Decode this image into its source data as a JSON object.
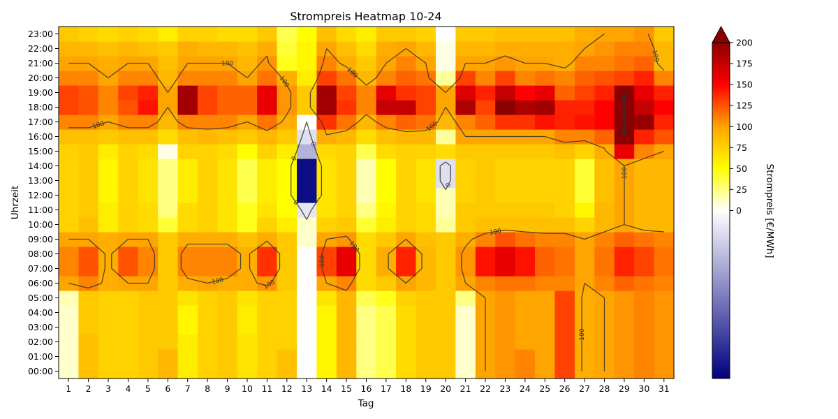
{
  "chart_data": {
    "type": "heatmap",
    "title": "Strompreis Heatmap 10-24",
    "xlabel": "Tag",
    "ylabel": "Uhrzeit",
    "colorbar_label": "Strompreis [€/MWh]",
    "x_ticks": [
      "1",
      "2",
      "3",
      "4",
      "5",
      "6",
      "7",
      "8",
      "9",
      "10",
      "11",
      "12",
      "13",
      "14",
      "15",
      "16",
      "17",
      "18",
      "19",
      "20",
      "21",
      "22",
      "23",
      "24",
      "25",
      "26",
      "27",
      "28",
      "29",
      "30",
      "31"
    ],
    "y_ticks": [
      "00:00",
      "01:00",
      "02:00",
      "03:00",
      "04:00",
      "05:00",
      "06:00",
      "07:00",
      "08:00",
      "09:00",
      "10:00",
      "11:00",
      "12:00",
      "13:00",
      "14:00",
      "15:00",
      "16:00",
      "17:00",
      "18:00",
      "19:00",
      "20:00",
      "21:00",
      "22:00",
      "23:00"
    ],
    "colorbar_ticks": [
      0,
      25,
      50,
      75,
      100,
      125,
      150,
      175,
      200
    ],
    "vmin": -200,
    "vmax": 200,
    "colorbar_extend": "max",
    "colors": [
      "#00007f",
      "#ffffff",
      "#ffff00",
      "#ffa500",
      "#ff0000",
      "#8b0000"
    ],
    "contour_levels": [
      0,
      100,
      200
    ],
    "contour_label_texts": [
      "0",
      "0",
      "0",
      "0",
      "100",
      "100",
      "100",
      "100",
      "100",
      "100",
      "100",
      "100",
      "100",
      "100",
      "100",
      "100",
      "100",
      "200",
      "200",
      "200"
    ],
    "grid": false,
    "values_by_hour": [
      [
        10,
        85,
        75,
        75,
        80,
        90,
        60,
        75,
        80,
        65,
        75,
        85,
        0,
        55,
        90,
        25,
        35,
        70,
        80,
        80,
        10,
        100,
        105,
        110,
        100,
        130,
        95,
        100,
        105,
        110,
        105
      ],
      [
        10,
        85,
        75,
        75,
        80,
        90,
        60,
        75,
        80,
        65,
        75,
        85,
        0,
        55,
        90,
        25,
        35,
        70,
        80,
        80,
        10,
        100,
        105,
        110,
        100,
        130,
        95,
        100,
        105,
        110,
        105
      ],
      [
        10,
        85,
        75,
        75,
        80,
        80,
        60,
        75,
        80,
        65,
        75,
        75,
        0,
        55,
        90,
        25,
        35,
        70,
        80,
        80,
        10,
        100,
        105,
        100,
        100,
        130,
        95,
        100,
        105,
        110,
        105
      ],
      [
        10,
        80,
        75,
        75,
        80,
        80,
        55,
        75,
        80,
        60,
        75,
        75,
        0,
        55,
        90,
        25,
        35,
        70,
        80,
        80,
        10,
        100,
        105,
        100,
        100,
        130,
        95,
        100,
        105,
        110,
        105
      ],
      [
        10,
        80,
        75,
        75,
        80,
        80,
        55,
        75,
        80,
        60,
        75,
        75,
        0,
        55,
        90,
        25,
        35,
        70,
        80,
        80,
        10,
        100,
        105,
        100,
        100,
        130,
        95,
        100,
        105,
        110,
        105
      ],
      [
        15,
        80,
        75,
        75,
        80,
        80,
        65,
        75,
        80,
        65,
        75,
        75,
        0,
        65,
        90,
        35,
        45,
        75,
        80,
        80,
        25,
        100,
        105,
        100,
        100,
        130,
        95,
        100,
        105,
        110,
        105
      ],
      [
        100,
        110,
        95,
        100,
        100,
        80,
        95,
        100,
        95,
        95,
        105,
        80,
        0,
        100,
        110,
        70,
        80,
        100,
        90,
        80,
        100,
        110,
        115,
        115,
        110,
        110,
        100,
        110,
        120,
        115,
        110
      ],
      [
        110,
        125,
        95,
        125,
        110,
        80,
        110,
        110,
        110,
        95,
        135,
        80,
        0,
        130,
        160,
        70,
        95,
        140,
        90,
        80,
        105,
        145,
        160,
        145,
        120,
        115,
        100,
        115,
        140,
        130,
        115
      ],
      [
        110,
        125,
        95,
        125,
        110,
        80,
        110,
        110,
        110,
        95,
        135,
        80,
        0,
        130,
        160,
        70,
        95,
        140,
        90,
        80,
        105,
        145,
        160,
        145,
        120,
        115,
        100,
        115,
        140,
        130,
        115
      ],
      [
        100,
        100,
        95,
        100,
        100,
        80,
        95,
        95,
        95,
        85,
        95,
        80,
        10,
        100,
        105,
        70,
        80,
        100,
        85,
        80,
        95,
        110,
        125,
        115,
        110,
        110,
        100,
        110,
        120,
        115,
        110
      ],
      [
        75,
        85,
        60,
        75,
        70,
        40,
        70,
        75,
        65,
        45,
        75,
        60,
        10,
        75,
        80,
        40,
        60,
        75,
        70,
        20,
        80,
        85,
        85,
        85,
        85,
        85,
        75,
        90,
        100,
        90,
        90
      ],
      [
        75,
        80,
        60,
        75,
        70,
        25,
        70,
        75,
        65,
        45,
        65,
        50,
        -20,
        65,
        75,
        25,
        55,
        75,
        70,
        15,
        80,
        80,
        80,
        80,
        80,
        75,
        55,
        90,
        100,
        90,
        90
      ],
      [
        75,
        80,
        55,
        75,
        65,
        25,
        60,
        75,
        65,
        35,
        60,
        50,
        -190,
        65,
        75,
        15,
        50,
        75,
        65,
        15,
        75,
        80,
        75,
        75,
        75,
        75,
        40,
        85,
        100,
        90,
        90
      ],
      [
        75,
        80,
        55,
        75,
        65,
        25,
        60,
        75,
        65,
        35,
        60,
        50,
        -190,
        65,
        75,
        15,
        50,
        75,
        65,
        -25,
        75,
        80,
        75,
        75,
        75,
        75,
        40,
        85,
        100,
        90,
        90
      ],
      [
        75,
        80,
        55,
        75,
        65,
        25,
        60,
        75,
        65,
        35,
        60,
        50,
        -190,
        65,
        75,
        15,
        50,
        75,
        65,
        -25,
        75,
        80,
        75,
        75,
        75,
        75,
        40,
        85,
        100,
        90,
        90
      ],
      [
        75,
        80,
        60,
        75,
        70,
        5,
        75,
        75,
        70,
        50,
        75,
        60,
        -60,
        70,
        75,
        35,
        70,
        75,
        75,
        70,
        80,
        80,
        80,
        80,
        80,
        85,
        75,
        95,
        160,
        110,
        100
      ],
      [
        85,
        85,
        80,
        85,
        85,
        70,
        85,
        90,
        85,
        80,
        90,
        80,
        -25,
        95,
        90,
        70,
        85,
        90,
        90,
        20,
        100,
        100,
        100,
        100,
        100,
        110,
        110,
        120,
        200,
        140,
        125
      ],
      [
        110,
        110,
        100,
        110,
        110,
        90,
        110,
        110,
        110,
        100,
        115,
        95,
        0,
        135,
        115,
        90,
        110,
        120,
        115,
        90,
        110,
        120,
        135,
        135,
        145,
        140,
        145,
        150,
        200,
        195,
        140
      ],
      [
        130,
        125,
        110,
        125,
        145,
        100,
        190,
        130,
        120,
        120,
        160,
        105,
        80,
        190,
        135,
        110,
        175,
        175,
        130,
        100,
        185,
        130,
        200,
        185,
        190,
        140,
        140,
        150,
        200,
        175,
        150
      ],
      [
        130,
        125,
        110,
        130,
        140,
        100,
        190,
        130,
        120,
        120,
        160,
        105,
        80,
        190,
        130,
        110,
        160,
        135,
        130,
        100,
        165,
        140,
        175,
        150,
        160,
        120,
        130,
        140,
        200,
        160,
        140
      ],
      [
        110,
        110,
        100,
        110,
        110,
        90,
        110,
        110,
        110,
        100,
        115,
        95,
        60,
        130,
        115,
        90,
        110,
        120,
        115,
        20,
        130,
        110,
        130,
        110,
        115,
        110,
        120,
        125,
        130,
        140,
        110
      ],
      [
        100,
        100,
        95,
        100,
        100,
        85,
        100,
        100,
        100,
        90,
        105,
        45,
        55,
        110,
        95,
        80,
        100,
        110,
        100,
        5,
        100,
        100,
        105,
        100,
        100,
        95,
        110,
        110,
        115,
        120,
        90
      ],
      [
        90,
        90,
        85,
        90,
        85,
        80,
        95,
        90,
        90,
        85,
        95,
        40,
        55,
        100,
        85,
        70,
        95,
        100,
        90,
        5,
        90,
        90,
        95,
        95,
        95,
        95,
        100,
        105,
        110,
        110,
        90
      ],
      [
        80,
        75,
        70,
        75,
        70,
        60,
        75,
        75,
        70,
        70,
        80,
        35,
        50,
        85,
        70,
        60,
        80,
        80,
        75,
        0,
        80,
        80,
        85,
        85,
        85,
        85,
        95,
        100,
        100,
        105,
        80
      ]
    ]
  }
}
